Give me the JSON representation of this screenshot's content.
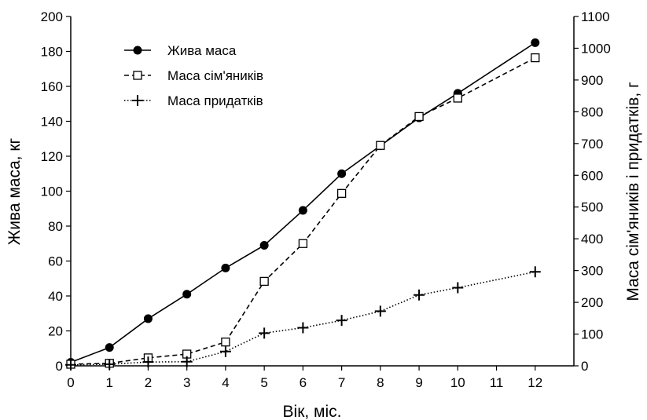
{
  "chart_data": {
    "type": "line",
    "xlabel": "Вік, міс.",
    "ylabel_left": "Жива маса, кг",
    "ylabel_right": "Маса сім'яників і придатків, г",
    "x_ticks": [
      0,
      1,
      2,
      3,
      4,
      5,
      6,
      7,
      8,
      9,
      10,
      11,
      12
    ],
    "xlim": [
      0,
      13
    ],
    "ylim_left": [
      0,
      200
    ],
    "yticks_left": [
      0,
      20,
      40,
      60,
      80,
      100,
      120,
      140,
      160,
      180,
      200
    ],
    "ylim_right": [
      0,
      1100
    ],
    "yticks_right": [
      0,
      100,
      200,
      300,
      400,
      500,
      600,
      700,
      800,
      900,
      1000,
      1100
    ],
    "legend_position": "top-left",
    "grid": false,
    "series": [
      {
        "name": "Жива маса",
        "axis": "left",
        "line": "solid",
        "marker": "filled-circle",
        "color": "#000000",
        "x": [
          0,
          1,
          2,
          3,
          4,
          5,
          6,
          7,
          8,
          9,
          10,
          12
        ],
        "y": [
          2,
          10.5,
          27,
          41,
          56,
          69,
          89,
          110,
          126,
          142,
          156,
          185
        ]
      },
      {
        "name": "Маса сім'яників",
        "axis": "right",
        "line": "dashed",
        "marker": "open-square",
        "color": "#000000",
        "x": [
          0,
          1,
          2,
          3,
          4,
          5,
          6,
          7,
          8,
          9,
          10,
          12
        ],
        "y": [
          5,
          8,
          25,
          37,
          75,
          266,
          385,
          543,
          694,
          785,
          843,
          970
        ]
      },
      {
        "name": "Маса придатків",
        "axis": "right",
        "line": "dotted",
        "marker": "plus",
        "color": "#000000",
        "x": [
          0,
          1,
          2,
          3,
          4,
          5,
          6,
          7,
          8,
          9,
          10,
          12
        ],
        "y": [
          3,
          5,
          12,
          13,
          45,
          103,
          120,
          143,
          172,
          223,
          246,
          296
        ]
      }
    ]
  }
}
